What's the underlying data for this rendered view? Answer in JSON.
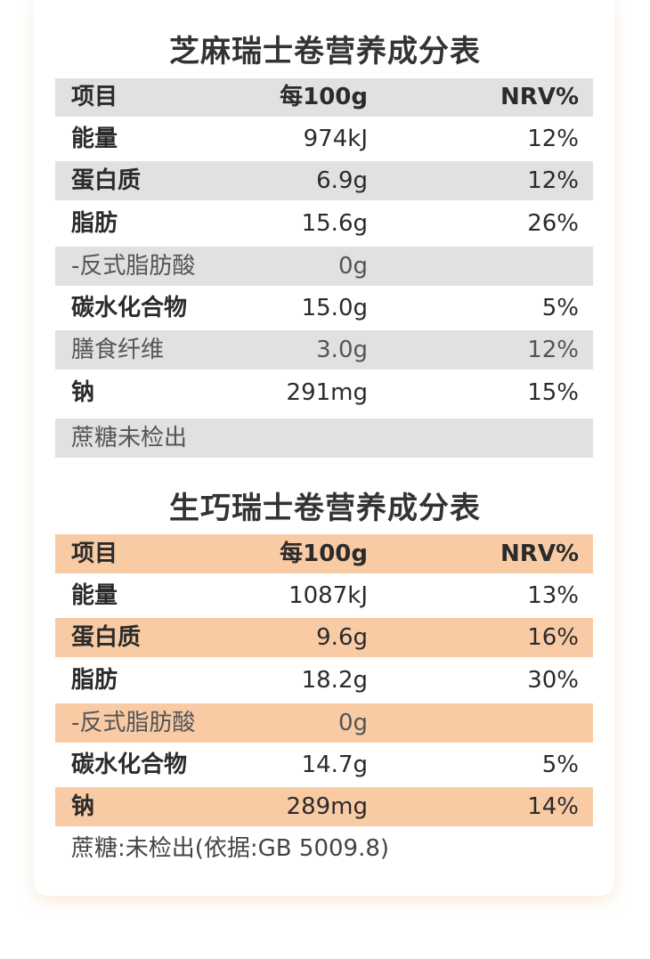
{
  "table1": {
    "title": "芝麻瑞士卷营养成分表",
    "header": {
      "item": "项目",
      "per100": "每100g",
      "nrv": "NRV%"
    },
    "rows": [
      {
        "item": "能量",
        "per100": "974kJ",
        "nrv": "12%"
      },
      {
        "item": "蛋白质",
        "per100": "6.9g",
        "nrv": "12%"
      },
      {
        "item": "脂肪",
        "per100": "15.6g",
        "nrv": "26%"
      },
      {
        "item": "-反式脂肪酸",
        "per100": "0g",
        "nrv": ""
      },
      {
        "item": "碳水化合物",
        "per100": "15.0g",
        "nrv": "5%"
      },
      {
        "item": "膳食纤维",
        "per100": "3.0g",
        "nrv": "12%"
      },
      {
        "item": "钠",
        "per100": "291mg",
        "nrv": "15%"
      }
    ],
    "footer": "蔗糖未检出"
  },
  "table2": {
    "title": "生巧瑞士卷营养成分表",
    "header": {
      "item": "项目",
      "per100": "每100g",
      "nrv": "NRV%"
    },
    "rows": [
      {
        "item": "能量",
        "per100": "1087kJ",
        "nrv": "13%"
      },
      {
        "item": "蛋白质",
        "per100": "9.6g",
        "nrv": "16%"
      },
      {
        "item": "脂肪",
        "per100": "18.2g",
        "nrv": "30%"
      },
      {
        "item": "-反式脂肪酸",
        "per100": "0g",
        "nrv": ""
      },
      {
        "item": "碳水化合物",
        "per100": "14.7g",
        "nrv": "5%"
      },
      {
        "item": "钠",
        "per100": "289mg",
        "nrv": "14%"
      }
    ],
    "footer": "蔗糖:未检出(依据:GB 5009.8)"
  },
  "colors": {
    "gray_row": "#e1e1e1",
    "peach_row": "#f8cba5",
    "text": "#2b2b2b"
  }
}
